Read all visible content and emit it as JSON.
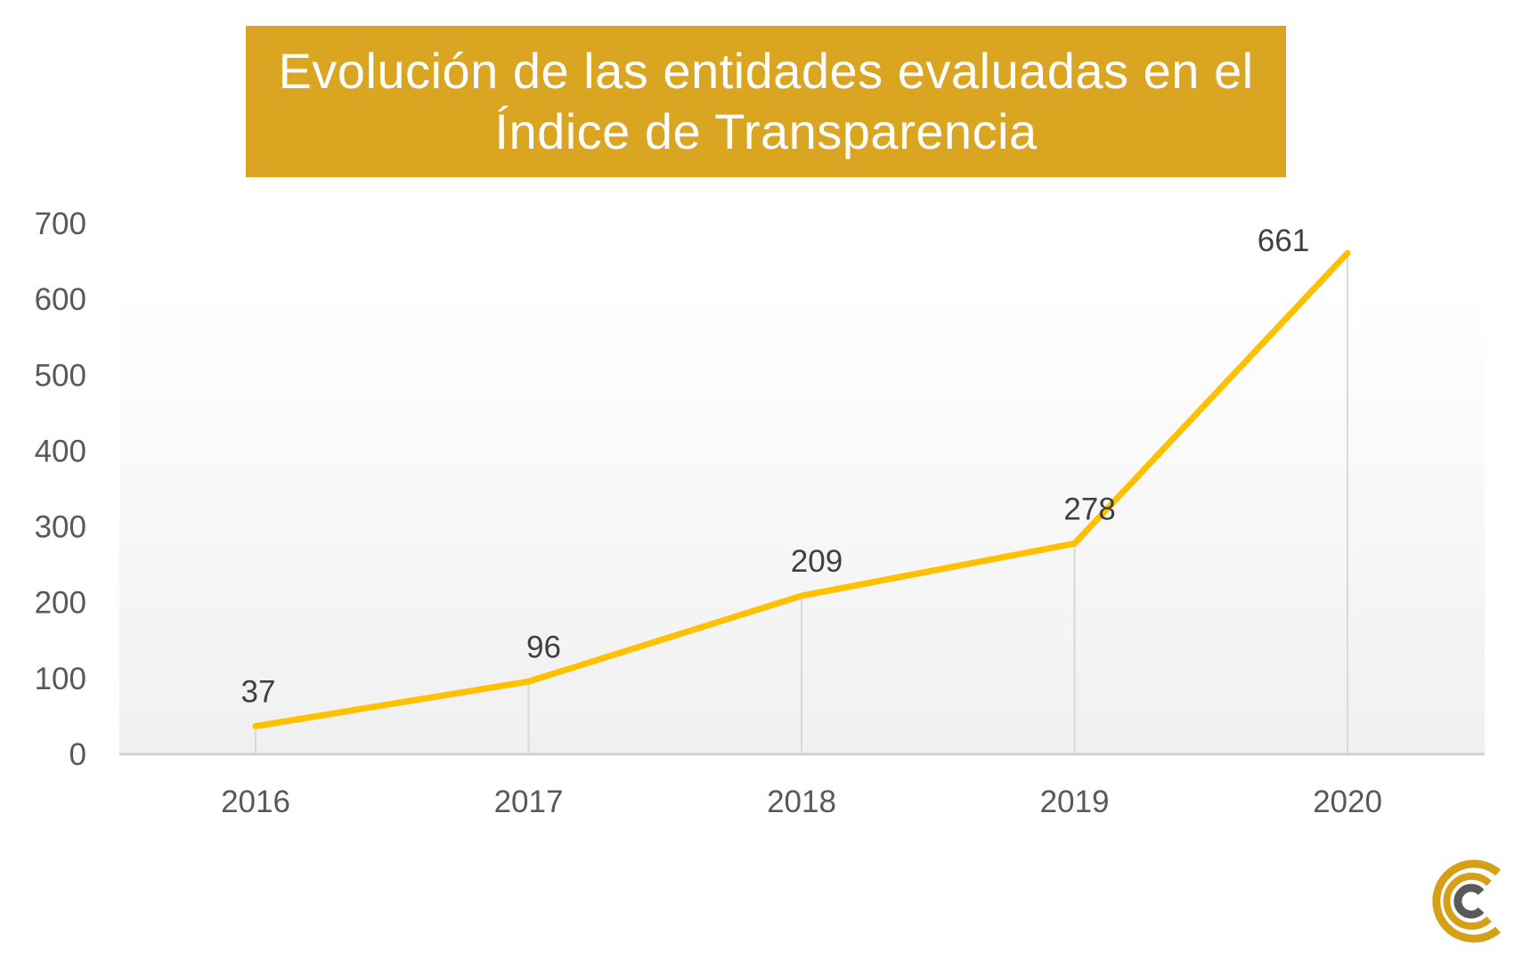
{
  "title": "Evolución de las entidades evaluadas en el Índice de Transparencia",
  "colors": {
    "title_bg": "#DAA520",
    "line": "#FFC000",
    "axis_text": "#595959",
    "logo_gold": "#D4A017",
    "logo_gray": "#595959"
  },
  "logo": {
    "icon": "circular-c-logo-icon"
  },
  "chart_data": {
    "type": "line",
    "title": "Evolución de las entidades evaluadas en el Índice de Transparencia",
    "categories": [
      "2016",
      "2017",
      "2018",
      "2019",
      "2020"
    ],
    "series": [
      {
        "values": [
          37,
          96,
          209,
          278,
          661
        ]
      }
    ],
    "data_labels": [
      "37",
      "96",
      "209",
      "278",
      "661"
    ],
    "y_ticks": [
      0,
      100,
      200,
      300,
      400,
      500,
      600,
      700
    ],
    "ylim": [
      0,
      700
    ],
    "xlabel": "",
    "ylabel": "",
    "grid": false,
    "legend": "none"
  }
}
